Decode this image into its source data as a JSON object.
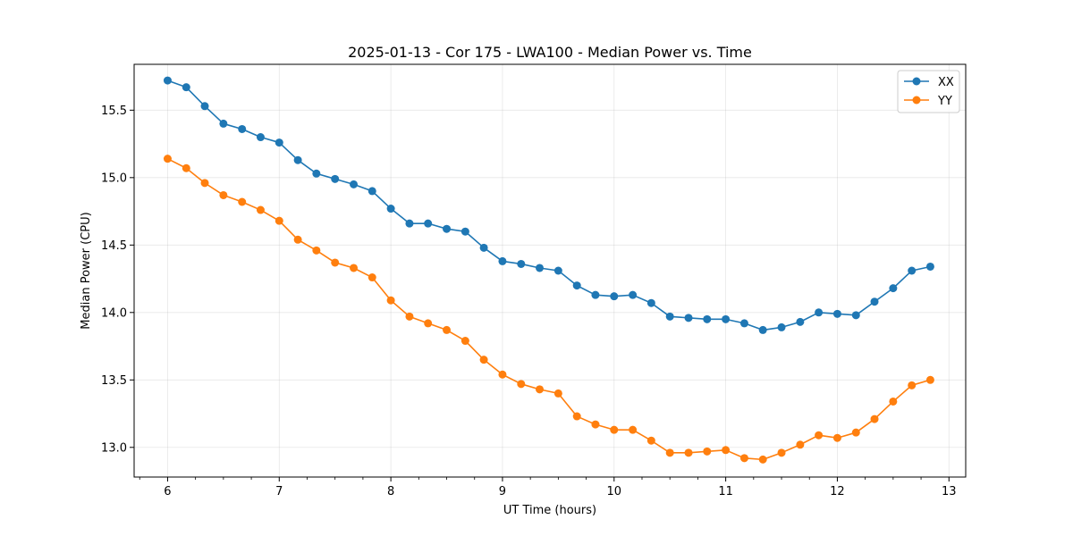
{
  "chart_data": {
    "type": "line",
    "title": "2025-01-13 - Cor 175 - LWA100 - Median Power vs. Time",
    "xlabel": "UT Time (hours)",
    "ylabel": "Median Power (CPU)",
    "xlim": [
      5.7,
      13.15
    ],
    "ylim": [
      12.78,
      15.84
    ],
    "xticks": [
      6,
      7,
      8,
      9,
      10,
      11,
      12,
      13
    ],
    "yticks": [
      13.0,
      13.5,
      14.0,
      14.5,
      15.0,
      15.5
    ],
    "ytick_labels": [
      "13.0",
      "13.5",
      "14.0",
      "14.5",
      "15.0",
      "15.5"
    ],
    "grid": true,
    "legend": "top-right",
    "x": [
      6.0,
      6.167,
      6.333,
      6.5,
      6.667,
      6.833,
      7.0,
      7.167,
      7.333,
      7.5,
      7.667,
      7.833,
      8.0,
      8.167,
      8.333,
      8.5,
      8.667,
      8.833,
      9.0,
      9.167,
      9.333,
      9.5,
      9.667,
      9.833,
      10.0,
      10.167,
      10.333,
      10.5,
      10.667,
      10.833,
      11.0,
      11.167,
      11.333,
      11.5,
      11.667,
      11.833,
      12.0,
      12.167,
      12.333,
      12.5,
      12.667,
      12.833
    ],
    "series": [
      {
        "name": "XX",
        "color": "#1f77b4",
        "values": [
          15.72,
          15.67,
          15.53,
          15.4,
          15.36,
          15.3,
          15.26,
          15.13,
          15.03,
          14.99,
          14.95,
          14.9,
          14.77,
          14.66,
          14.66,
          14.62,
          14.6,
          14.48,
          14.38,
          14.36,
          14.33,
          14.31,
          14.2,
          14.13,
          14.12,
          14.13,
          14.07,
          13.97,
          13.96,
          13.95,
          13.95,
          13.92,
          13.87,
          13.89,
          13.93,
          14.0,
          13.99,
          13.98,
          14.08,
          14.18,
          14.31,
          14.34
        ]
      },
      {
        "name": "YY",
        "color": "#ff7f0e",
        "values": [
          15.14,
          15.07,
          14.96,
          14.87,
          14.82,
          14.76,
          14.68,
          14.54,
          14.46,
          14.37,
          14.33,
          14.26,
          14.09,
          13.97,
          13.92,
          13.87,
          13.79,
          13.65,
          13.54,
          13.47,
          13.43,
          13.4,
          13.23,
          13.17,
          13.13,
          13.13,
          13.05,
          12.96,
          12.96,
          12.97,
          12.98,
          12.92,
          12.91,
          12.96,
          13.02,
          13.09,
          13.07,
          13.11,
          13.21,
          13.34,
          13.46,
          13.5
        ]
      }
    ]
  }
}
